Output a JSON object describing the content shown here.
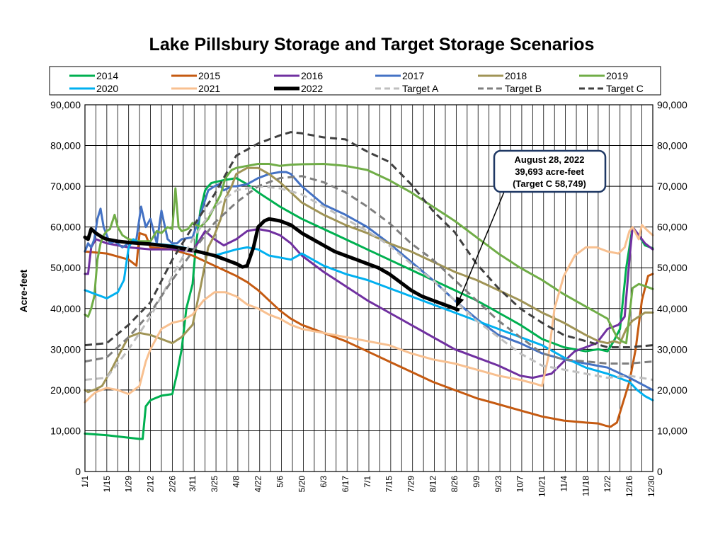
{
  "chart_data": {
    "type": "line",
    "title": "Lake Pillsbury Storage and Target Storage Scenarios",
    "ylabel": "Acre-feet",
    "xlabel": "",
    "ylim": [
      0,
      90000
    ],
    "y_ticks": [
      "0",
      "10,000",
      "20,000",
      "30,000",
      "40,000",
      "50,000",
      "60,000",
      "70,000",
      "80,000",
      "90,000"
    ],
    "y_tick_values": [
      0,
      10000,
      20000,
      30000,
      40000,
      50000,
      60000,
      70000,
      80000,
      90000
    ],
    "x_ticks": [
      "1/1",
      "1/15",
      "1/29",
      "2/12",
      "2/26",
      "3/11",
      "3/25",
      "4/8",
      "4/22",
      "5/6",
      "5/20",
      "6/3",
      "6/17",
      "7/1",
      "7/15",
      "7/29",
      "8/12",
      "8/26",
      "9/9",
      "9/23",
      "10/7",
      "10/21",
      "11/4",
      "11/18",
      "12/2",
      "12/16",
      "12/30"
    ],
    "x_tick_days": [
      1,
      15,
      29,
      43,
      57,
      70,
      84,
      98,
      112,
      126,
      140,
      154,
      168,
      182,
      196,
      210,
      224,
      238,
      252,
      266,
      280,
      294,
      308,
      322,
      336,
      350,
      364
    ],
    "xlim_days": [
      1,
      365
    ],
    "grid": true,
    "legend_position": "top",
    "series": [
      {
        "name": "2014",
        "color": "#00b050",
        "dash": "solid",
        "width": 3,
        "x": [
          1,
          15,
          29,
          36,
          38,
          40,
          43,
          50,
          57,
          60,
          63,
          66,
          70,
          72,
          75,
          78,
          80,
          82,
          84,
          90,
          98,
          105,
          112,
          126,
          140,
          154,
          168,
          182,
          196,
          210,
          224,
          238,
          252,
          266,
          280,
          294,
          308,
          322,
          330,
          336,
          340,
          344,
          348,
          352,
          356,
          360,
          365
        ],
        "y": [
          9300,
          8900,
          8300,
          8000,
          8000,
          16000,
          17500,
          18600,
          19000,
          24000,
          30000,
          40000,
          46000,
          55000,
          64000,
          69000,
          70000,
          70800,
          71000,
          71500,
          72000,
          70500,
          68500,
          65000,
          62000,
          59500,
          57000,
          54500,
          52000,
          49500,
          47000,
          44500,
          42000,
          39000,
          36000,
          32500,
          30500,
          29500,
          30000,
          29500,
          32000,
          35000,
          50000,
          60000,
          58000,
          55500,
          54800
        ]
      },
      {
        "name": "2015",
        "color": "#c55a11",
        "dash": "solid",
        "width": 3,
        "x": [
          1,
          15,
          29,
          34,
          36,
          40,
          43,
          57,
          70,
          84,
          98,
          105,
          112,
          119,
          126,
          133,
          140,
          154,
          168,
          182,
          196,
          210,
          224,
          238,
          252,
          266,
          280,
          294,
          308,
          322,
          330,
          335,
          338,
          342,
          346,
          350,
          354,
          358,
          362,
          365
        ],
        "y": [
          54000,
          53500,
          52000,
          50500,
          58500,
          58000,
          55000,
          54500,
          53000,
          50500,
          48000,
          46500,
          44500,
          42000,
          39500,
          37500,
          36000,
          34000,
          32000,
          29500,
          27000,
          24500,
          22000,
          20000,
          18000,
          16500,
          15000,
          13500,
          12500,
          12000,
          11800,
          11200,
          11000,
          12000,
          17000,
          22000,
          30000,
          42000,
          48000,
          48500
        ]
      },
      {
        "name": "2016",
        "color": "#7030a0",
        "dash": "solid",
        "width": 3,
        "x": [
          1,
          3,
          5,
          8,
          15,
          22,
          29,
          43,
          57,
          70,
          78,
          84,
          90,
          98,
          105,
          112,
          119,
          126,
          133,
          140,
          154,
          168,
          182,
          196,
          210,
          224,
          238,
          252,
          266,
          280,
          288,
          294,
          300,
          308,
          315,
          322,
          329,
          336,
          343,
          347,
          350,
          352,
          356,
          360,
          365
        ],
        "y": [
          48500,
          48500,
          55000,
          57000,
          56000,
          55500,
          55000,
          54500,
          54500,
          54000,
          59000,
          57000,
          55500,
          57000,
          59000,
          59500,
          59000,
          58000,
          56000,
          53000,
          49000,
          45500,
          42000,
          39000,
          36000,
          33000,
          30000,
          28000,
          26000,
          23500,
          23000,
          23500,
          24000,
          27000,
          29500,
          30500,
          31500,
          35000,
          36000,
          38000,
          52000,
          60000,
          58000,
          56000,
          54500
        ]
      },
      {
        "name": "2017",
        "color": "#4472c4",
        "dash": "solid",
        "width": 3,
        "x": [
          1,
          3,
          5,
          7,
          9,
          11,
          13,
          15,
          17,
          20,
          25,
          29,
          34,
          37,
          40,
          43,
          47,
          50,
          54,
          57,
          60,
          63,
          70,
          75,
          80,
          84,
          87,
          90,
          95,
          98,
          105,
          112,
          119,
          126,
          130,
          133,
          140,
          154,
          168,
          182,
          196,
          210,
          224,
          238,
          252,
          266,
          280,
          294,
          308,
          322,
          336,
          350,
          365
        ],
        "y": [
          54000,
          56000,
          55000,
          57000,
          62000,
          64500,
          60000,
          58000,
          56000,
          56500,
          55000,
          56000,
          57000,
          65000,
          60000,
          62000,
          56000,
          64000,
          57000,
          56000,
          56000,
          57000,
          57500,
          63000,
          69000,
          70000,
          70500,
          69000,
          70000,
          70000,
          70500,
          72000,
          73000,
          73500,
          73500,
          73000,
          70000,
          65500,
          63000,
          60000,
          56000,
          51500,
          47000,
          42000,
          37500,
          33500,
          31500,
          29000,
          27500,
          26500,
          25500,
          23000,
          20000
        ]
      },
      {
        "name": "2018",
        "color": "#a09456",
        "dash": "solid",
        "width": 3,
        "x": [
          1,
          3,
          5,
          8,
          12,
          15,
          18,
          22,
          26,
          29,
          36,
          43,
          50,
          57,
          63,
          70,
          75,
          80,
          84,
          88,
          91,
          95,
          98,
          105,
          112,
          119,
          126,
          133,
          140,
          154,
          168,
          182,
          196,
          210,
          224,
          238,
          252,
          266,
          280,
          294,
          308,
          322,
          330,
          336,
          340,
          344,
          348,
          352,
          356,
          360,
          365
        ],
        "y": [
          20000,
          19500,
          19800,
          20200,
          21000,
          23000,
          25000,
          28000,
          31000,
          33000,
          34000,
          33500,
          32500,
          31500,
          33000,
          36000,
          45000,
          55000,
          58000,
          62000,
          67000,
          70000,
          73000,
          74500,
          74500,
          73000,
          71000,
          68500,
          66000,
          63000,
          60500,
          58500,
          56000,
          54000,
          51500,
          49000,
          47000,
          44500,
          42000,
          39000,
          36500,
          33500,
          32000,
          31500,
          32000,
          31500,
          35000,
          37000,
          38000,
          39000,
          39000
        ]
      },
      {
        "name": "2019",
        "color": "#70ad47",
        "dash": "solid",
        "width": 3,
        "x": [
          1,
          3,
          5,
          7,
          9,
          11,
          13,
          15,
          17,
          20,
          22,
          25,
          29,
          36,
          43,
          47,
          50,
          54,
          57,
          59,
          61,
          63,
          67,
          70,
          75,
          80,
          84,
          88,
          91,
          95,
          98,
          105,
          112,
          119,
          126,
          133,
          140,
          154,
          168,
          182,
          196,
          210,
          224,
          238,
          252,
          266,
          280,
          294,
          308,
          322,
          329,
          336,
          342,
          345,
          348,
          352,
          356,
          360,
          365
        ],
        "y": [
          38500,
          38000,
          40000,
          43000,
          52000,
          56000,
          58000,
          59000,
          59500,
          63000,
          60000,
          58000,
          57000,
          56500,
          56500,
          59000,
          58500,
          60000,
          59500,
          69500,
          60000,
          59000,
          59500,
          61000,
          60000,
          62000,
          65000,
          68000,
          72000,
          74000,
          74500,
          75000,
          75500,
          75500,
          75000,
          75300,
          75400,
          75500,
          75000,
          74000,
          71500,
          68500,
          65000,
          61500,
          57500,
          53500,
          50000,
          47000,
          43500,
          40500,
          39000,
          37500,
          33000,
          32000,
          31500,
          45000,
          46000,
          45500,
          44800
        ]
      },
      {
        "name": "2020",
        "color": "#00b0f0",
        "dash": "solid",
        "width": 3,
        "x": [
          1,
          8,
          15,
          22,
          26,
          29,
          32,
          36,
          43,
          57,
          70,
          84,
          98,
          105,
          112,
          119,
          126,
          133,
          140,
          154,
          168,
          182,
          196,
          210,
          224,
          238,
          252,
          266,
          280,
          294,
          308,
          322,
          336,
          350,
          355,
          360,
          365
        ],
        "y": [
          44500,
          43500,
          42500,
          44000,
          47000,
          55000,
          57000,
          56000,
          56000,
          55500,
          54500,
          53000,
          54500,
          55000,
          54500,
          53000,
          52500,
          52000,
          53500,
          50500,
          48500,
          47000,
          45000,
          43000,
          41000,
          39000,
          37000,
          35000,
          33000,
          31000,
          28000,
          25500,
          24000,
          22000,
          20000,
          18500,
          17500
        ]
      },
      {
        "name": "2021",
        "color": "#f8c090",
        "dash": "solid",
        "width": 3,
        "x": [
          1,
          5,
          8,
          15,
          22,
          29,
          36,
          40,
          43,
          50,
          57,
          63,
          70,
          77,
          84,
          91,
          98,
          105,
          112,
          119,
          126,
          133,
          140,
          154,
          168,
          182,
          196,
          210,
          224,
          238,
          252,
          266,
          280,
          290,
          294,
          298,
          302,
          308,
          315,
          322,
          329,
          336,
          343,
          347,
          350,
          352,
          356,
          358,
          362,
          365
        ],
        "y": [
          17000,
          18500,
          19500,
          20500,
          20000,
          19000,
          21000,
          27000,
          30000,
          35000,
          36500,
          37000,
          38500,
          42000,
          44000,
          44000,
          43000,
          41000,
          40000,
          38500,
          37500,
          36000,
          35000,
          34000,
          33000,
          32000,
          31000,
          29000,
          27500,
          26500,
          25000,
          23500,
          22500,
          21500,
          21000,
          28000,
          40000,
          48000,
          53000,
          55000,
          55000,
          54000,
          53500,
          55000,
          59000,
          60000,
          57000,
          60500,
          59000,
          58000
        ]
      },
      {
        "name": "2022",
        "color": "#000000",
        "dash": "solid",
        "width": 5,
        "x": [
          1,
          3,
          5,
          8,
          12,
          15,
          22,
          29,
          36,
          43,
          57,
          70,
          84,
          91,
          98,
          102,
          105,
          109,
          112,
          116,
          119,
          126,
          133,
          140,
          147,
          154,
          161,
          168,
          175,
          182,
          189,
          196,
          203,
          210,
          217,
          224,
          231,
          238,
          240
        ],
        "y": [
          57500,
          57000,
          59500,
          58500,
          57500,
          57000,
          56500,
          56200,
          56000,
          55800,
          55200,
          54300,
          53000,
          52000,
          51000,
          50200,
          50500,
          55000,
          60000,
          61500,
          62000,
          61500,
          60500,
          58500,
          57000,
          55500,
          54000,
          53000,
          52000,
          51000,
          50000,
          48500,
          46500,
          44500,
          43000,
          42000,
          41000,
          40000,
          39693
        ]
      },
      {
        "name": "Target A",
        "color": "#bfbfbf",
        "dash": "10,6",
        "width": 3,
        "x": [
          1,
          15,
          29,
          43,
          57,
          70,
          84,
          98,
          112,
          126,
          140,
          154,
          168,
          182,
          196,
          210,
          224,
          238,
          252,
          266,
          280,
          294,
          308,
          322,
          336,
          350,
          365
        ],
        "y": [
          22500,
          23000,
          30000,
          38000,
          48000,
          57000,
          65000,
          69000,
          70000,
          69500,
          68000,
          65000,
          62000,
          59000,
          55500,
          51000,
          47000,
          42000,
          37000,
          33000,
          29000,
          26000,
          25000,
          24000,
          23000,
          23500,
          22500
        ]
      },
      {
        "name": "Target B",
        "color": "#7f7f7f",
        "dash": "10,6",
        "width": 3,
        "x": [
          1,
          15,
          29,
          43,
          57,
          70,
          84,
          98,
          112,
          126,
          140,
          154,
          168,
          182,
          196,
          210,
          224,
          238,
          252,
          266,
          280,
          294,
          308,
          322,
          336,
          350,
          365
        ],
        "y": [
          27000,
          28000,
          33000,
          39000,
          47000,
          54000,
          61000,
          66000,
          70000,
          72000,
          72500,
          71000,
          68500,
          65000,
          61000,
          56000,
          52000,
          47000,
          42000,
          37000,
          33000,
          29000,
          27500,
          27000,
          26500,
          26500,
          27000
        ]
      },
      {
        "name": "Target C",
        "color": "#404040",
        "dash": "10,6",
        "width": 3,
        "x": [
          1,
          15,
          29,
          43,
          57,
          70,
          84,
          98,
          112,
          126,
          133,
          140,
          154,
          168,
          182,
          196,
          210,
          224,
          238,
          252,
          266,
          280,
          294,
          308,
          322,
          336,
          350,
          365
        ],
        "y": [
          31000,
          31500,
          36000,
          41500,
          52000,
          60000,
          68000,
          77500,
          80500,
          82500,
          83300,
          83000,
          82000,
          81500,
          78500,
          76000,
          70500,
          64000,
          58749,
          51000,
          45000,
          40000,
          36500,
          33500,
          32000,
          30500,
          30500,
          31000
        ]
      }
    ],
    "annotation": {
      "lines": [
        "August 28, 2022",
        "39,693 acre-feet",
        "(Target C 58,749)"
      ],
      "point_day": 240,
      "point_value": 39693
    }
  }
}
